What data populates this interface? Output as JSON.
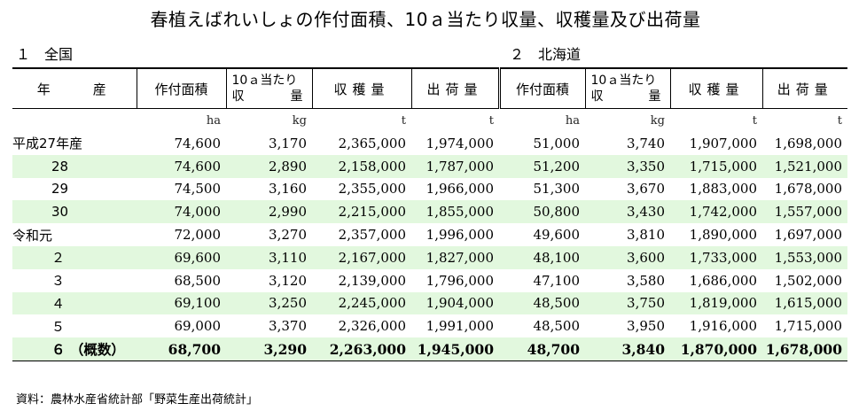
{
  "title": "春植えばれいしょの作付面積、10ａ当たり収量、収穫量及び出荷量",
  "section1": "１　全国",
  "section2": "２　北海道",
  "headers": {
    "year": "年　　産",
    "area": "作付面積",
    "yield_l1": "10ａ当たり",
    "yield_l2a": "収",
    "yield_l2b": "量",
    "harvest": "収穫量",
    "shipment": "出荷量"
  },
  "units": [
    "ha",
    "kg",
    "t",
    "t",
    "ha",
    "kg",
    "t",
    "t"
  ],
  "rows": [
    {
      "label": "平成27年産",
      "nat": [
        "74,600",
        "3,170",
        "2,365,000",
        "1,974,000"
      ],
      "hok": [
        "51,000",
        "3,740",
        "1,907,000",
        "1,698,000"
      ]
    },
    {
      "label": "28",
      "nat": [
        "74,600",
        "2,890",
        "2,158,000",
        "1,787,000"
      ],
      "hok": [
        "51,200",
        "3,350",
        "1,715,000",
        "1,521,000"
      ]
    },
    {
      "label": "29",
      "nat": [
        "74,500",
        "3,160",
        "2,355,000",
        "1,966,000"
      ],
      "hok": [
        "51,300",
        "3,670",
        "1,883,000",
        "1,678,000"
      ]
    },
    {
      "label": "30",
      "nat": [
        "74,000",
        "2,990",
        "2,215,000",
        "1,855,000"
      ],
      "hok": [
        "50,800",
        "3,430",
        "1,742,000",
        "1,557,000"
      ]
    },
    {
      "label": "令和元",
      "nat": [
        "72,000",
        "3,270",
        "2,357,000",
        "1,996,000"
      ],
      "hok": [
        "49,600",
        "3,810",
        "1,890,000",
        "1,697,000"
      ]
    },
    {
      "label": "２",
      "nat": [
        "69,600",
        "3,110",
        "2,167,000",
        "1,827,000"
      ],
      "hok": [
        "48,100",
        "3,600",
        "1,733,000",
        "1,553,000"
      ]
    },
    {
      "label": "３",
      "nat": [
        "68,500",
        "3,120",
        "2,139,000",
        "1,796,000"
      ],
      "hok": [
        "47,100",
        "3,580",
        "1,686,000",
        "1,502,000"
      ]
    },
    {
      "label": "４",
      "nat": [
        "69,100",
        "3,250",
        "2,245,000",
        "1,904,000"
      ],
      "hok": [
        "48,500",
        "3,750",
        "1,819,000",
        "1,615,000"
      ]
    },
    {
      "label": "５",
      "nat": [
        "69,000",
        "3,370",
        "2,326,000",
        "1,991,000"
      ],
      "hok": [
        "48,500",
        "3,950",
        "1,916,000",
        "1,715,000"
      ]
    },
    {
      "label": "６ （概数）",
      "nat": [
        "68,700",
        "3,290",
        "2,263,000",
        "1,945,000"
      ],
      "hok": [
        "48,700",
        "3,840",
        "1,870,000",
        "1,678,000"
      ]
    }
  ],
  "source": "資料：農林水産省統計部「野菜生産出荷統計」"
}
